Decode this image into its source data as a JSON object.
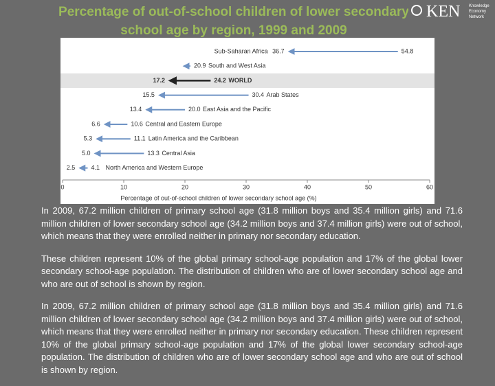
{
  "header": {
    "title_lines": [
      "Percentage of out-of-school children of lower secondary",
      "school age by region, 1999 and 2009"
    ],
    "logo": {
      "mark": "KEN",
      "caption": [
        "Knowledge",
        "Economy",
        "Network"
      ]
    }
  },
  "chart_data": {
    "type": "arrow",
    "categories": [
      "Sub-Saharan Africa",
      "South and West Asia",
      "WORLD",
      "Arab States",
      "East Asia and the Pacific",
      "Central and Eastern Europe",
      "Latin America and the Caribbean",
      "Central Asia",
      "North America and Western Europe"
    ],
    "series": [
      {
        "color": "#6f93c4",
        "values": [
          36.7,
          19.5,
          17.2,
          15.5,
          13.4,
          6.6,
          5.3,
          5.0,
          2.5
        ],
        "value_labels": [
          "36.7",
          null,
          "17.2",
          "15.5",
          "13.4",
          "6.6",
          "5.3",
          "5.0",
          "2.5"
        ]
      },
      {
        "color": "#6f93c4",
        "values": [
          54.8,
          20.9,
          24.2,
          30.4,
          20.0,
          10.6,
          11.1,
          13.3,
          4.1
        ],
        "value_labels": [
          "54.8",
          "20.9",
          "24.2",
          "30.4",
          "20.0",
          "10.6",
          "11.1",
          "13.3",
          "4.1"
        ]
      }
    ],
    "highlight_index": 2,
    "highlight_color": "#222222",
    "xlabel": "Percentage of out-of-school children of lower secondary school age (%)",
    "xlim": [
      0,
      60
    ],
    "xticks": [
      0,
      10,
      20,
      30,
      40,
      50,
      60
    ]
  },
  "paragraphs": [
    "In 2009, 67.2 million children of primary school age (31.8 million boys and 35.4 million girls) and 71.6 million children of lower secondary school age (34.2 million boys and 37.4 million girls) were out of school, which means that they were enrolled neither in primary nor secondary education.",
    "These children represent 10% of the global primary school-age population and 17% of the global lower secondary school-age population. The distribution of children who are of lower secondary school age and who are out of school is shown by region.",
    "In 2009, 67.2 million children of primary school age (31.8 million boys and 35.4 million girls) and 71.6 million children of lower secondary school age (34.2 million boys and 37.4 million girls) were out of school, which means that they were enrolled neither in primary nor secondary education. These children represent 10% of the global primary school-age population and 17% of the global lower secondary school-age population. The distribution of children who are of lower secondary school age and who are out of school is shown by region."
  ]
}
